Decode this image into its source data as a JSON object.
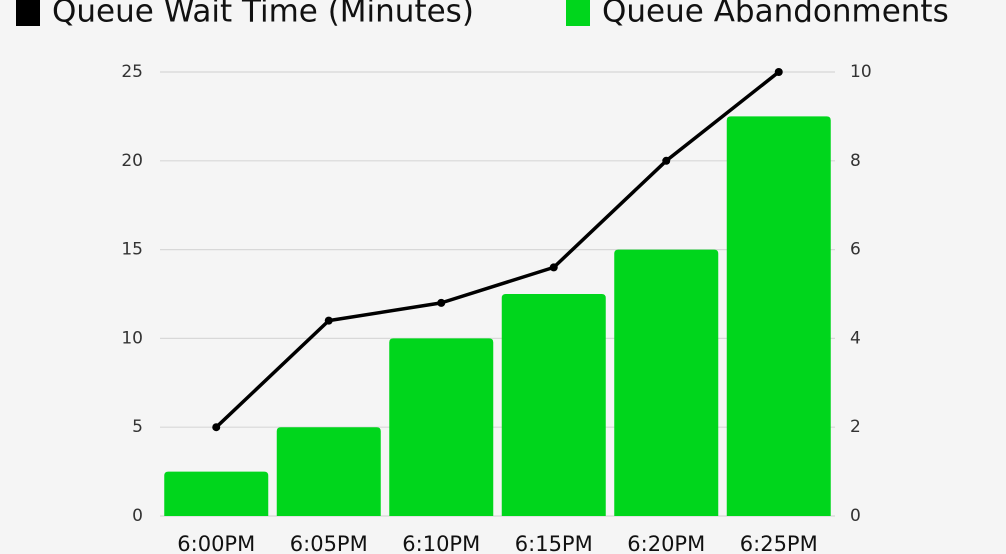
{
  "chart_data": {
    "type": "combo",
    "categories": [
      "6:00PM",
      "6:05PM",
      "6:10PM",
      "6:15PM",
      "6:20PM",
      "6:25PM"
    ],
    "series": [
      {
        "name": "Queue Wait Time (Minutes)",
        "type": "line",
        "color": "#000000",
        "values": [
          5,
          11,
          12,
          14,
          20,
          25
        ]
      },
      {
        "name": "Queue Abandonments",
        "type": "bar",
        "axis": "y2",
        "color": "#00d61c",
        "values": [
          1,
          2,
          4,
          5,
          6,
          9
        ]
      }
    ],
    "ylim": [
      0,
      25
    ],
    "yticks": [
      0,
      5,
      10,
      15,
      20,
      25
    ],
    "y2lim": [
      0,
      10
    ],
    "y2ticks": [
      0,
      2,
      4,
      6,
      8,
      10
    ],
    "grid": true
  }
}
